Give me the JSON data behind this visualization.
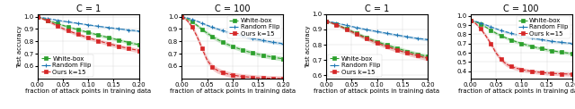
{
  "subplots": [
    {
      "title": "C = 1",
      "ylabel": "Test accuracy",
      "xlabel": "fraction of attack points in training data",
      "xlim": [
        0.0,
        0.2
      ],
      "ylim": [
        0.5,
        1.02
      ],
      "yticks": [
        0.6,
        0.7,
        0.8,
        0.9,
        1.0
      ],
      "xticks": [
        0.0,
        0.05,
        0.1,
        0.15,
        0.2
      ],
      "show_legend": true,
      "legend_loc": "lower left",
      "x": [
        0.0,
        0.01,
        0.02,
        0.03,
        0.04,
        0.05,
        0.06,
        0.07,
        0.08,
        0.09,
        0.1,
        0.11,
        0.12,
        0.13,
        0.14,
        0.15,
        0.16,
        0.17,
        0.18,
        0.19,
        0.2
      ],
      "whitebox_mean": [
        1.0,
        0.986,
        0.972,
        0.958,
        0.944,
        0.93,
        0.918,
        0.906,
        0.895,
        0.884,
        0.873,
        0.862,
        0.851,
        0.841,
        0.831,
        0.821,
        0.811,
        0.801,
        0.791,
        0.782,
        0.773
      ],
      "whitebox_std": [
        0.005,
        0.006,
        0.007,
        0.008,
        0.009,
        0.01,
        0.01,
        0.011,
        0.011,
        0.011,
        0.012,
        0.012,
        0.012,
        0.013,
        0.013,
        0.013,
        0.013,
        0.013,
        0.014,
        0.014,
        0.014
      ],
      "randflip_mean": [
        1.0,
        0.992,
        0.985,
        0.978,
        0.971,
        0.964,
        0.958,
        0.952,
        0.946,
        0.94,
        0.934,
        0.928,
        0.922,
        0.917,
        0.912,
        0.907,
        0.902,
        0.897,
        0.892,
        0.888,
        0.884
      ],
      "randflip_std": [
        0.003,
        0.004,
        0.004,
        0.005,
        0.005,
        0.005,
        0.006,
        0.006,
        0.006,
        0.006,
        0.007,
        0.007,
        0.007,
        0.007,
        0.007,
        0.008,
        0.008,
        0.008,
        0.008,
        0.008,
        0.008
      ],
      "ours_mean": [
        1.0,
        0.983,
        0.965,
        0.946,
        0.925,
        0.904,
        0.888,
        0.872,
        0.857,
        0.843,
        0.83,
        0.817,
        0.805,
        0.793,
        0.782,
        0.771,
        0.761,
        0.751,
        0.742,
        0.734,
        0.726
      ],
      "ours_std": [
        0.006,
        0.008,
        0.01,
        0.012,
        0.013,
        0.014,
        0.014,
        0.015,
        0.015,
        0.015,
        0.016,
        0.016,
        0.016,
        0.016,
        0.017,
        0.017,
        0.017,
        0.017,
        0.017,
        0.018,
        0.018
      ]
    },
    {
      "title": "C = 100",
      "ylabel": "",
      "xlabel": "fraction of attack points in training data",
      "xlim": [
        0.0,
        0.2
      ],
      "ylim": [
        0.5,
        1.02
      ],
      "yticks": [
        0.6,
        0.7,
        0.8,
        0.9,
        1.0
      ],
      "xticks": [
        0.0,
        0.05,
        0.1,
        0.15,
        0.2
      ],
      "show_legend": true,
      "legend_loc": "upper right",
      "x": [
        0.0,
        0.01,
        0.02,
        0.03,
        0.04,
        0.05,
        0.06,
        0.07,
        0.08,
        0.09,
        0.1,
        0.11,
        0.12,
        0.13,
        0.14,
        0.15,
        0.16,
        0.17,
        0.18,
        0.19,
        0.2
      ],
      "whitebox_mean": [
        1.0,
        0.984,
        0.96,
        0.93,
        0.898,
        0.866,
        0.84,
        0.816,
        0.795,
        0.776,
        0.759,
        0.744,
        0.73,
        0.717,
        0.706,
        0.696,
        0.687,
        0.679,
        0.672,
        0.665,
        0.659
      ],
      "whitebox_std": [
        0.005,
        0.008,
        0.011,
        0.013,
        0.015,
        0.016,
        0.017,
        0.017,
        0.017,
        0.017,
        0.017,
        0.017,
        0.017,
        0.018,
        0.018,
        0.018,
        0.018,
        0.018,
        0.018,
        0.018,
        0.018
      ],
      "randflip_mean": [
        1.0,
        0.991,
        0.979,
        0.964,
        0.948,
        0.93,
        0.915,
        0.901,
        0.888,
        0.876,
        0.864,
        0.853,
        0.843,
        0.833,
        0.824,
        0.816,
        0.808,
        0.8,
        0.793,
        0.787,
        0.781
      ],
      "randflip_std": [
        0.003,
        0.005,
        0.006,
        0.007,
        0.008,
        0.009,
        0.01,
        0.01,
        0.01,
        0.011,
        0.011,
        0.011,
        0.011,
        0.012,
        0.012,
        0.012,
        0.012,
        0.012,
        0.012,
        0.012,
        0.012
      ],
      "ours_mean": [
        1.0,
        0.972,
        0.92,
        0.84,
        0.742,
        0.648,
        0.594,
        0.566,
        0.549,
        0.537,
        0.528,
        0.521,
        0.516,
        0.512,
        0.509,
        0.506,
        0.504,
        0.502,
        0.501,
        0.5,
        0.499
      ],
      "ours_std": [
        0.006,
        0.012,
        0.018,
        0.022,
        0.025,
        0.025,
        0.024,
        0.023,
        0.022,
        0.022,
        0.022,
        0.022,
        0.022,
        0.022,
        0.022,
        0.022,
        0.022,
        0.022,
        0.022,
        0.022,
        0.022
      ]
    },
    {
      "title": "C = 1",
      "ylabel": "Test accuracy",
      "xlabel": "fraction of attack points in training data",
      "xlim": [
        0.0,
        0.2
      ],
      "ylim": [
        0.58,
        1.0
      ],
      "yticks": [
        0.6,
        0.7,
        0.8,
        0.9,
        1.0
      ],
      "xticks": [
        0.0,
        0.05,
        0.1,
        0.15,
        0.2
      ],
      "show_legend": true,
      "legend_loc": "lower left",
      "x": [
        0.0,
        0.01,
        0.02,
        0.03,
        0.04,
        0.05,
        0.06,
        0.07,
        0.08,
        0.09,
        0.1,
        0.11,
        0.12,
        0.13,
        0.14,
        0.15,
        0.16,
        0.17,
        0.18,
        0.19,
        0.2
      ],
      "whitebox_mean": [
        0.955,
        0.945,
        0.933,
        0.919,
        0.905,
        0.889,
        0.875,
        0.86,
        0.846,
        0.833,
        0.821,
        0.809,
        0.798,
        0.787,
        0.777,
        0.767,
        0.757,
        0.748,
        0.739,
        0.731,
        0.723
      ],
      "whitebox_std": [
        0.006,
        0.007,
        0.008,
        0.009,
        0.01,
        0.011,
        0.011,
        0.012,
        0.012,
        0.012,
        0.013,
        0.013,
        0.013,
        0.013,
        0.014,
        0.014,
        0.014,
        0.014,
        0.014,
        0.015,
        0.015
      ],
      "randflip_mean": [
        0.955,
        0.949,
        0.942,
        0.935,
        0.928,
        0.92,
        0.913,
        0.906,
        0.899,
        0.893,
        0.887,
        0.881,
        0.875,
        0.869,
        0.863,
        0.858,
        0.852,
        0.847,
        0.842,
        0.838,
        0.834
      ],
      "randflip_std": [
        0.004,
        0.005,
        0.005,
        0.005,
        0.006,
        0.006,
        0.006,
        0.007,
        0.007,
        0.007,
        0.007,
        0.007,
        0.008,
        0.008,
        0.008,
        0.008,
        0.008,
        0.008,
        0.008,
        0.009,
        0.009
      ],
      "ours_mean": [
        0.955,
        0.944,
        0.931,
        0.917,
        0.902,
        0.886,
        0.87,
        0.855,
        0.84,
        0.826,
        0.813,
        0.8,
        0.788,
        0.777,
        0.766,
        0.756,
        0.746,
        0.737,
        0.728,
        0.72,
        0.712
      ],
      "ours_std": [
        0.006,
        0.007,
        0.008,
        0.009,
        0.011,
        0.012,
        0.012,
        0.013,
        0.013,
        0.014,
        0.014,
        0.014,
        0.015,
        0.015,
        0.015,
        0.015,
        0.016,
        0.016,
        0.016,
        0.016,
        0.016
      ]
    },
    {
      "title": "C = 100",
      "ylabel": "",
      "xlabel": "fraction of attack points in training data",
      "xlim": [
        0.0,
        0.2
      ],
      "ylim": [
        0.32,
        1.02
      ],
      "yticks": [
        0.4,
        0.5,
        0.6,
        0.7,
        0.8,
        0.9,
        1.0
      ],
      "xticks": [
        0.0,
        0.05,
        0.1,
        0.15,
        0.2
      ],
      "show_legend": true,
      "legend_loc": "upper right",
      "x": [
        0.0,
        0.01,
        0.02,
        0.03,
        0.04,
        0.05,
        0.06,
        0.07,
        0.08,
        0.09,
        0.1,
        0.11,
        0.12,
        0.13,
        0.14,
        0.15,
        0.16,
        0.17,
        0.18,
        0.19,
        0.2
      ],
      "whitebox_mean": [
        0.955,
        0.938,
        0.912,
        0.88,
        0.847,
        0.814,
        0.786,
        0.762,
        0.74,
        0.72,
        0.702,
        0.686,
        0.671,
        0.657,
        0.645,
        0.634,
        0.623,
        0.614,
        0.606,
        0.598,
        0.591
      ],
      "whitebox_std": [
        0.006,
        0.008,
        0.011,
        0.013,
        0.015,
        0.016,
        0.017,
        0.017,
        0.017,
        0.017,
        0.017,
        0.018,
        0.018,
        0.018,
        0.018,
        0.018,
        0.018,
        0.018,
        0.018,
        0.018,
        0.018
      ],
      "randflip_mean": [
        0.955,
        0.942,
        0.924,
        0.904,
        0.883,
        0.862,
        0.844,
        0.827,
        0.812,
        0.798,
        0.785,
        0.773,
        0.762,
        0.752,
        0.743,
        0.734,
        0.726,
        0.719,
        0.713,
        0.707,
        0.702
      ],
      "randflip_std": [
        0.005,
        0.006,
        0.008,
        0.009,
        0.01,
        0.011,
        0.011,
        0.012,
        0.012,
        0.012,
        0.012,
        0.013,
        0.013,
        0.013,
        0.013,
        0.013,
        0.013,
        0.013,
        0.013,
        0.013,
        0.013
      ],
      "ours_mean": [
        0.955,
        0.92,
        0.862,
        0.786,
        0.7,
        0.6,
        0.528,
        0.478,
        0.45,
        0.432,
        0.418,
        0.407,
        0.398,
        0.391,
        0.385,
        0.38,
        0.376,
        0.373,
        0.371,
        0.369,
        0.368
      ],
      "ours_std": [
        0.007,
        0.013,
        0.019,
        0.023,
        0.026,
        0.027,
        0.026,
        0.025,
        0.024,
        0.023,
        0.022,
        0.022,
        0.022,
        0.022,
        0.022,
        0.022,
        0.022,
        0.022,
        0.022,
        0.022,
        0.022
      ]
    }
  ],
  "whitebox_color": "#2ca02c",
  "randflip_color": "#1f77b4",
  "ours_color": "#d62728",
  "whitebox_label": "White-box",
  "randflip_label": "Random Flip",
  "ours_label": "Ours k=15",
  "legend_fontsize": 5,
  "title_fontsize": 7,
  "axis_fontsize": 5,
  "tick_fontsize": 5
}
